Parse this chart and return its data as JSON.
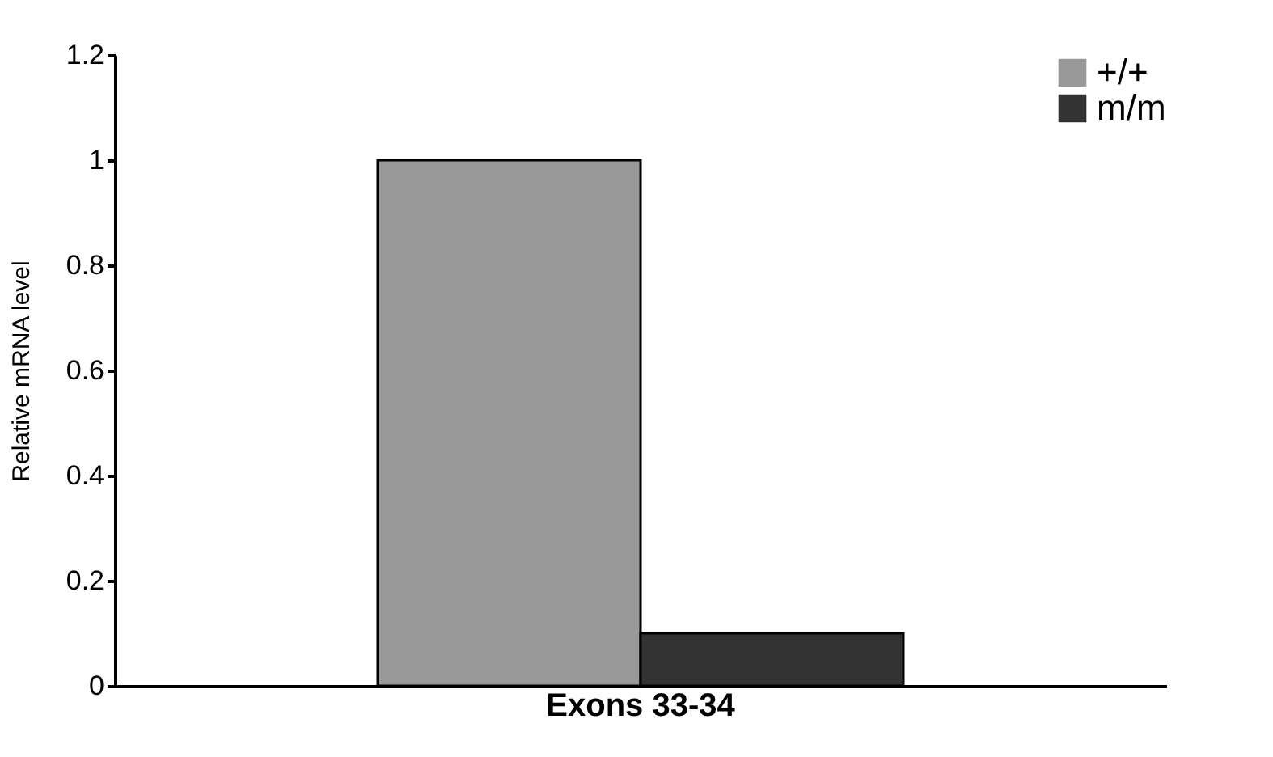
{
  "chart_data": {
    "type": "bar",
    "ylabel": "Relative mRNA level",
    "categories": [
      "Exons 33-34"
    ],
    "series": [
      {
        "name": "+/+",
        "color": "#999999",
        "values": [
          1
        ]
      },
      {
        "name": "m/m",
        "color": "#333333",
        "values": [
          0.1
        ]
      }
    ],
    "ylim": [
      0,
      1.2
    ],
    "yticks": [
      0,
      0.2,
      0.4,
      0.6,
      0.8,
      1,
      1.2
    ],
    "grid": false,
    "legend": "top right"
  }
}
